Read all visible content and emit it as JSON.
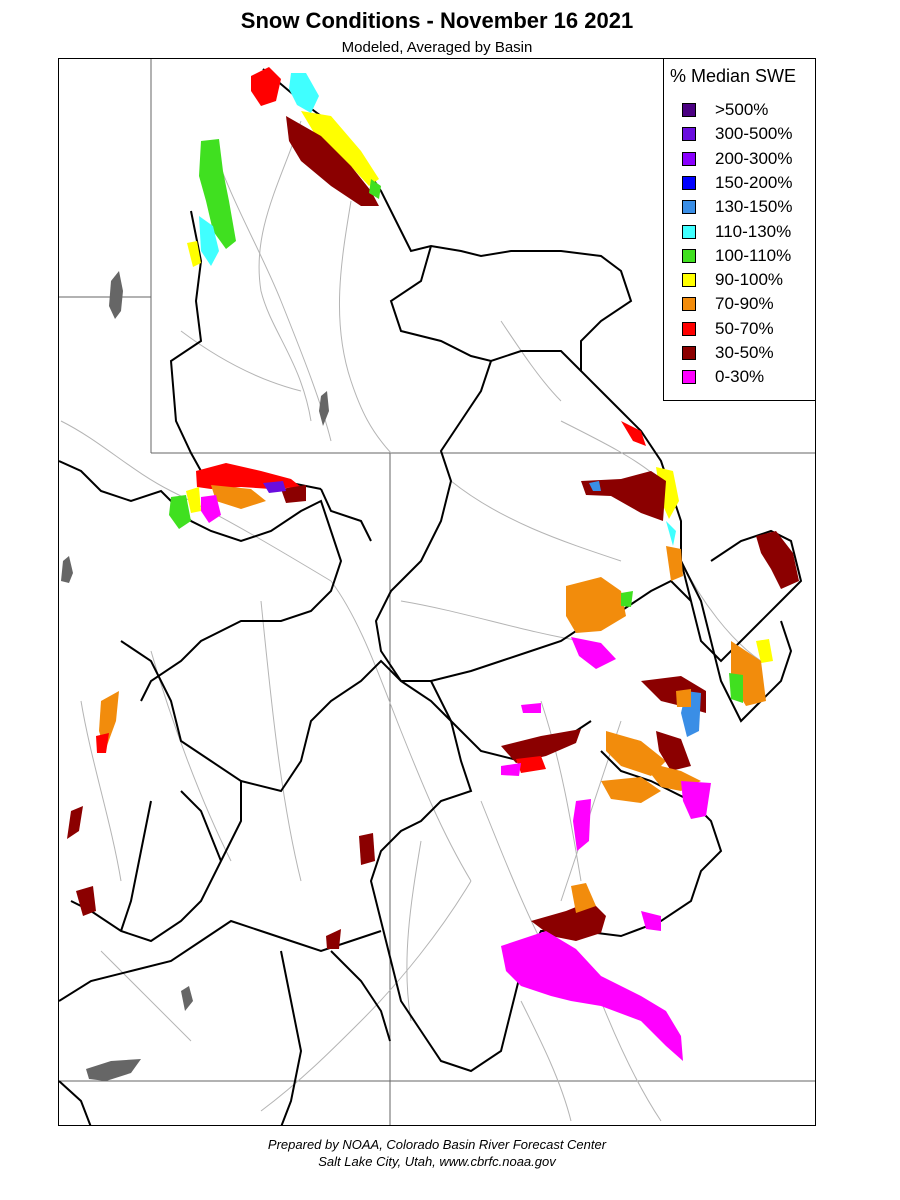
{
  "header": {
    "title": "Snow Conditions - November 16 2021",
    "subtitle": "Modeled, Averaged by Basin"
  },
  "legend": {
    "title": "% Median SWE",
    "items": [
      {
        "label": ">500%",
        "color": "#4b0082"
      },
      {
        "label": "300-500%",
        "color": "#6a0dde"
      },
      {
        "label": "200-300%",
        "color": "#8a00ff"
      },
      {
        "label": "150-200%",
        "color": "#0000ff"
      },
      {
        "label": "130-150%",
        "color": "#3a8ee6"
      },
      {
        "label": "110-130%",
        "color": "#40ffff"
      },
      {
        "label": "100-110%",
        "color": "#40e020"
      },
      {
        "label": "90-100%",
        "color": "#ffff00"
      },
      {
        "label": "70-90%",
        "color": "#f28c0c"
      },
      {
        "label": "50-70%",
        "color": "#ff0000"
      },
      {
        "label": "30-50%",
        "color": "#8b0000"
      },
      {
        "label": "0-30%",
        "color": "#ff00ff"
      }
    ]
  },
  "colors": {
    "lake": "#666666",
    "river": "#b0b0b0",
    "basin_boundary": "#000000",
    "state_boundary": "#666666"
  },
  "footer": {
    "line1": "Prepared by NOAA, Colorado Basin River Forecast Center",
    "line2": "Salt Lake City, Utah, www.cbrfc.noaa.gov"
  }
}
